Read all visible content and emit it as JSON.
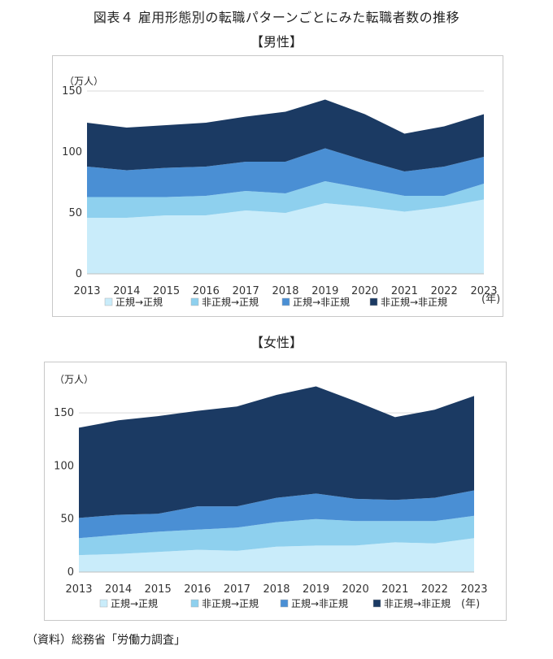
{
  "main_title": "図表４ 雇用形態別の転職パターンごとにみた転職者数の推移",
  "source": "（資料）総務省「労働力調査」",
  "colors": {
    "regular_to_regular": "#c9ecfa",
    "nonregular_to_regular": "#8ed0ee",
    "regular_to_nonregular": "#4a8fd4",
    "nonregular_to_nonregular": "#1b3a63"
  },
  "chart_data": [
    {
      "type": "area",
      "stacked": true,
      "title": "【男性】",
      "unit_label": "（万人）",
      "year_label": "(年)",
      "categories": [
        "2013",
        "2014",
        "2015",
        "2016",
        "2017",
        "2018",
        "2019",
        "2020",
        "2021",
        "2022",
        "2023"
      ],
      "ylim": [
        0,
        150
      ],
      "yticks": [
        0,
        50,
        100,
        150
      ],
      "grid": true,
      "legend": "bottom",
      "series": [
        {
          "name": "正規→正規",
          "values": [
            46,
            46,
            48,
            48,
            52,
            50,
            58,
            55,
            51,
            55,
            61
          ]
        },
        {
          "name": "非正規→正規",
          "values": [
            17,
            17,
            15,
            16,
            16,
            16,
            18,
            15,
            13,
            9,
            13
          ]
        },
        {
          "name": "正規→非正規",
          "values": [
            25,
            22,
            24,
            24,
            24,
            26,
            27,
            23,
            20,
            24,
            22
          ]
        },
        {
          "name": "非正規→非正規",
          "values": [
            36,
            35,
            35,
            36,
            37,
            41,
            40,
            38,
            31,
            33,
            35
          ]
        }
      ]
    },
    {
      "type": "area",
      "stacked": true,
      "title": "【女性】",
      "unit_label": "（万人）",
      "year_label": "(年)",
      "categories": [
        "2013",
        "2014",
        "2015",
        "2016",
        "2017",
        "2018",
        "2019",
        "2020",
        "2021",
        "2022",
        "2023"
      ],
      "ylim": [
        0,
        180
      ],
      "yticks": [
        0,
        50,
        100,
        150
      ],
      "grid": true,
      "legend": "bottom",
      "series": [
        {
          "name": "正規→正規",
          "values": [
            16,
            17,
            19,
            21,
            20,
            24,
            25,
            25,
            28,
            27,
            32
          ]
        },
        {
          "name": "非正規→正規",
          "values": [
            16,
            18,
            19,
            19,
            22,
            23,
            25,
            23,
            20,
            21,
            21
          ]
        },
        {
          "name": "正規→非正規",
          "values": [
            19,
            19,
            17,
            22,
            20,
            23,
            24,
            21,
            20,
            22,
            24
          ]
        },
        {
          "name": "非正規→非正規",
          "values": [
            85,
            89,
            92,
            90,
            94,
            97,
            101,
            92,
            78,
            83,
            89
          ]
        }
      ]
    }
  ]
}
